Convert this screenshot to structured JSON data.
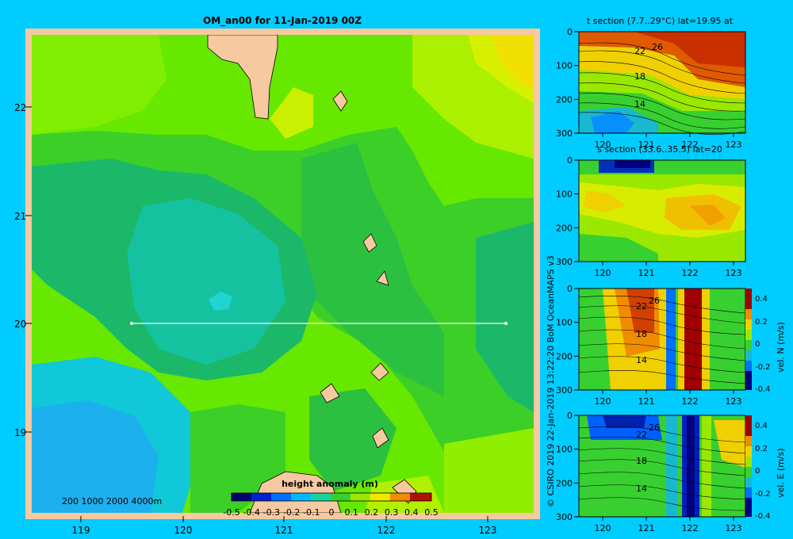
{
  "map": {
    "title": "OM_an00 for 11-Jan-2019 00Z",
    "lat_labels": [
      "22",
      "21",
      "20",
      "19"
    ],
    "lon_labels": [
      "119",
      "120",
      "121",
      "122",
      "123"
    ],
    "depth_scale_text": "200  1000  2000  4000m",
    "colorbar_title": "height anomaly  (m)",
    "colorbar_ticks": [
      "-0.5",
      "-0.4",
      "-0.3",
      "-0.2",
      "-0.1",
      "0",
      "0.1",
      "0.2",
      "0.3",
      "0.4",
      "0.5"
    ],
    "section_line_lat": 20
  },
  "panels": {
    "t_section_title": "t section (7.7..29°C) lat=19.95 at",
    "s_section_title": "s section (33.6..35.5) lat=20",
    "depth_ticks": [
      "0",
      "100",
      "200",
      "300"
    ],
    "lon_ticks": [
      "120",
      "121",
      "122",
      "123"
    ],
    "contour_labels_t": [
      "22",
      "18",
      "14"
    ],
    "contour_labels_v": [
      "22",
      "18",
      "14"
    ],
    "contour_labels_e": [
      "22",
      "18",
      "14"
    ],
    "contour_label_26": "26",
    "velN_label": "vel. N  (m/s)",
    "velE_label": "vel. E  (m/s)",
    "vel_ticks": [
      "0.4",
      "0.2",
      "0",
      "-0.2",
      "-0.4"
    ]
  },
  "credit": "© CSIRO 2019   22-Jan-2019 13:22:20 BoM OceanMAPS v3",
  "colors": {
    "background": "#00ccff",
    "land": "#f6c9a0"
  }
}
